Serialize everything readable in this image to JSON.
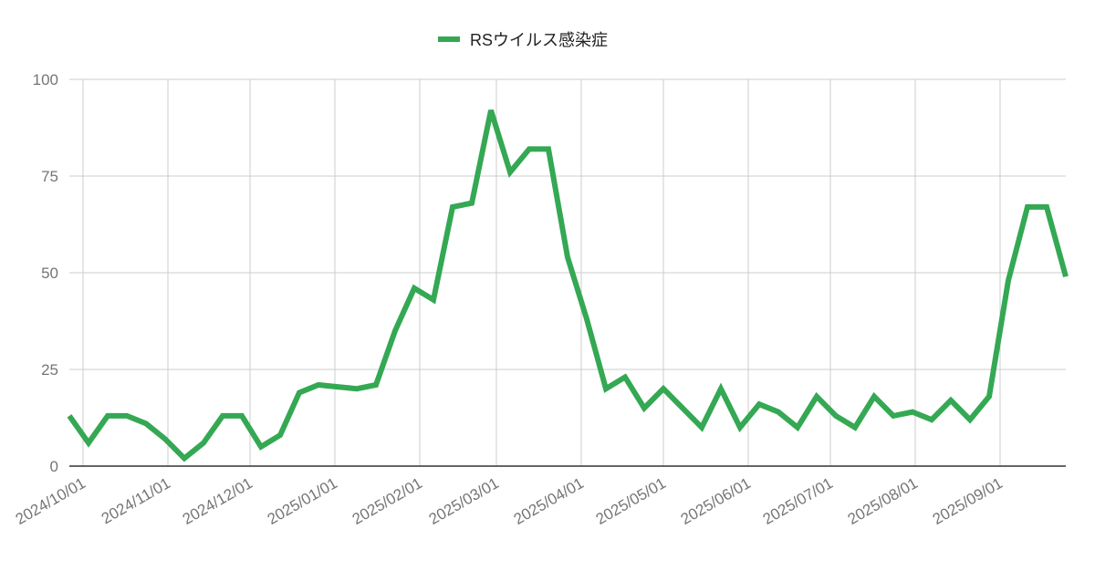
{
  "chart_data": {
    "type": "line",
    "x": [
      "2024/09/26",
      "2024/10/03",
      "2024/10/10",
      "2024/10/17",
      "2024/10/24",
      "2024/10/31",
      "2024/11/07",
      "2024/11/14",
      "2024/11/21",
      "2024/11/28",
      "2024/12/05",
      "2024/12/12",
      "2024/12/19",
      "2024/12/26",
      "2025/01/02",
      "2025/01/09",
      "2025/01/16",
      "2025/01/23",
      "2025/01/30",
      "2025/02/06",
      "2025/02/13",
      "2025/02/20",
      "2025/02/27",
      "2025/03/06",
      "2025/03/13",
      "2025/03/20",
      "2025/03/27",
      "2025/04/03",
      "2025/04/10",
      "2025/04/17",
      "2025/04/24",
      "2025/05/01",
      "2025/05/08",
      "2025/05/15",
      "2025/05/22",
      "2025/05/29",
      "2025/06/05",
      "2025/06/12",
      "2025/06/19",
      "2025/06/26",
      "2025/07/03",
      "2025/07/10",
      "2025/07/17",
      "2025/07/24",
      "2025/07/31",
      "2025/08/07",
      "2025/08/14",
      "2025/08/21",
      "2025/08/28",
      "2025/09/04",
      "2025/09/11",
      "2025/09/18",
      "2025/09/25"
    ],
    "series": [
      {
        "name": "RSウイルス感染症",
        "color": "#34a853",
        "values": [
          13,
          6,
          13,
          13,
          11,
          7,
          2,
          6,
          13,
          13,
          5,
          8,
          19,
          21,
          20.5,
          20,
          21,
          35,
          46,
          43,
          67,
          68,
          92,
          76,
          82,
          82,
          54,
          38,
          20,
          23,
          15,
          20,
          15,
          10,
          20,
          10,
          16,
          14,
          10,
          18,
          13,
          10,
          18,
          13,
          14,
          12,
          17,
          12,
          18,
          48,
          67,
          67,
          49
        ]
      }
    ],
    "xlim": [
      "2024/09/26",
      "2025/09/25"
    ],
    "xticks": [
      "2024/10/01",
      "2024/11/01",
      "2024/12/01",
      "2025/01/01",
      "2025/02/01",
      "2025/03/01",
      "2025/04/01",
      "2025/05/01",
      "2025/06/01",
      "2025/07/01",
      "2025/08/01",
      "2025/09/01"
    ],
    "ylim": [
      0,
      100
    ],
    "yticks": [
      0,
      25,
      50,
      75,
      100
    ],
    "grid": true,
    "legend": "top"
  }
}
